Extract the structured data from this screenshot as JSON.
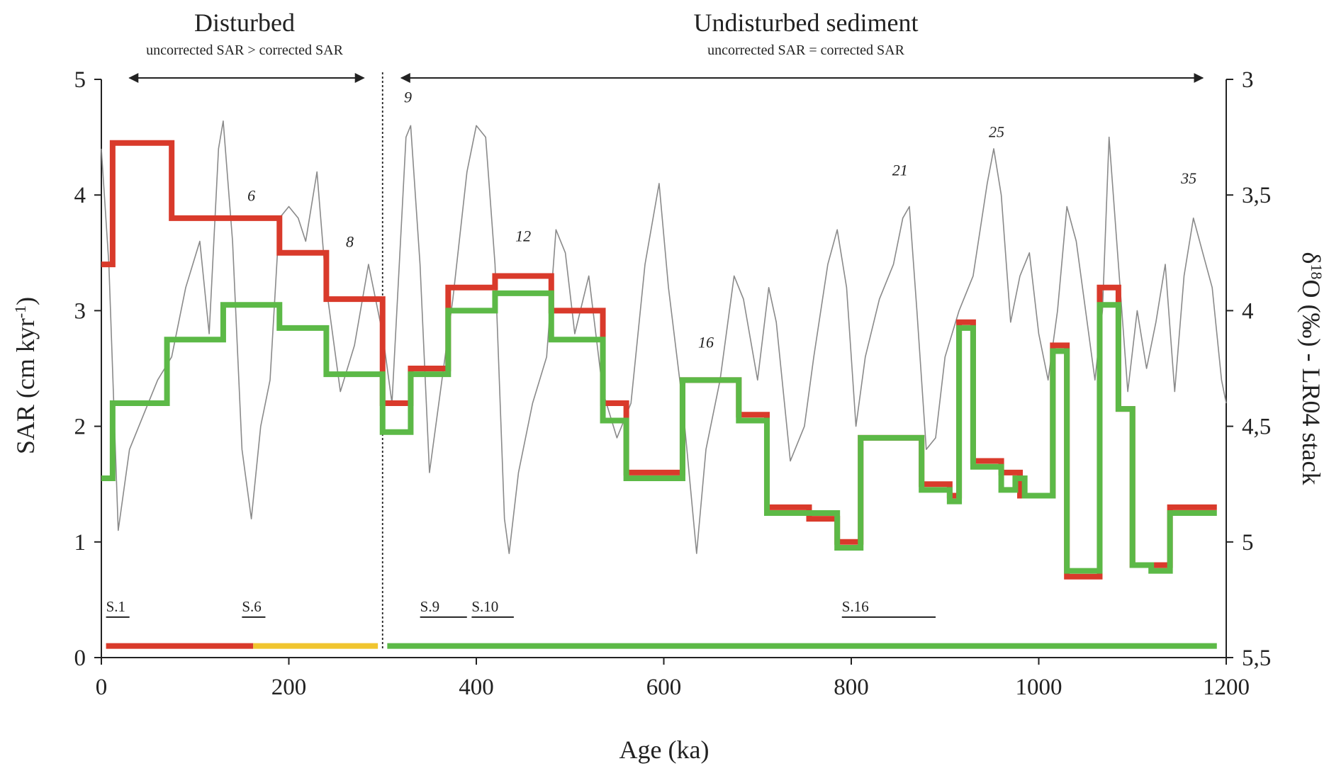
{
  "chart_data": {
    "type": "line",
    "header_left": "Disturbed",
    "subheader_left": "uncorrected SAR > corrected SAR",
    "header_right": "Undisturbed sediment",
    "subheader_right": "uncorrected SAR = corrected SAR",
    "xlabel": "Age (ka)",
    "ylabel": "SAR (cm kyr",
    "ylabel_sup": "-1",
    "ylabel_close": ")",
    "y2label_delta": "δ",
    "y2label_sup": "18",
    "y2label_rest": "O (‰) - LR04 stack",
    "xlim": [
      0,
      1200
    ],
    "ylim": [
      0,
      5
    ],
    "y2lim": [
      3,
      5.5
    ],
    "y2_inverted": true,
    "x_ticks": [
      "0",
      "200",
      "400",
      "600",
      "800",
      "1000",
      "1200"
    ],
    "y_ticks": [
      "0",
      "1",
      "2",
      "3",
      "4",
      "5"
    ],
    "y2_ticks": [
      "3",
      "3,5",
      "4",
      "4,5",
      "5",
      "5,5"
    ],
    "y2_tick_values": [
      3,
      3.5,
      4,
      4.5,
      5,
      5.5
    ],
    "disturbed_boundary_age": 300,
    "arrow_disturbed": [
      30,
      280
    ],
    "arrow_undisturbed": [
      320,
      1175
    ],
    "series": [
      {
        "name": "uncorrected SAR",
        "color": "#d93a2b",
        "steps": [
          [
            0,
            3.4
          ],
          [
            12,
            4.45
          ],
          [
            75,
            3.8
          ],
          [
            190,
            3.5
          ],
          [
            240,
            3.1
          ],
          [
            300,
            2.2
          ],
          [
            330,
            2.5
          ],
          [
            370,
            3.2
          ],
          [
            420,
            3.3
          ],
          [
            480,
            3.0
          ],
          [
            535,
            2.2
          ],
          [
            560,
            1.6
          ],
          [
            620,
            2.4
          ],
          [
            680,
            2.1
          ],
          [
            710,
            1.3
          ],
          [
            755,
            1.2
          ],
          [
            785,
            1.0
          ],
          [
            810,
            1.9
          ],
          [
            875,
            1.5
          ],
          [
            905,
            1.4
          ],
          [
            915,
            2.9
          ],
          [
            930,
            1.7
          ],
          [
            960,
            1.6
          ],
          [
            980,
            1.4
          ],
          [
            1015,
            2.7
          ],
          [
            1030,
            0.7
          ],
          [
            1065,
            3.2
          ],
          [
            1085,
            2.15
          ],
          [
            1100,
            0.8
          ],
          [
            1120,
            0.8
          ],
          [
            1140,
            1.3
          ],
          [
            1190,
            1.3
          ]
        ]
      },
      {
        "name": "corrected SAR",
        "color": "#5cb947",
        "steps": [
          [
            0,
            1.55
          ],
          [
            12,
            2.2
          ],
          [
            70,
            2.75
          ],
          [
            130,
            3.05
          ],
          [
            190,
            2.85
          ],
          [
            240,
            2.45
          ],
          [
            300,
            1.95
          ],
          [
            330,
            2.45
          ],
          [
            370,
            3.0
          ],
          [
            420,
            3.15
          ],
          [
            480,
            2.75
          ],
          [
            535,
            2.05
          ],
          [
            560,
            1.55
          ],
          [
            620,
            2.4
          ],
          [
            680,
            2.05
          ],
          [
            710,
            1.25
          ],
          [
            755,
            1.25
          ],
          [
            785,
            0.95
          ],
          [
            810,
            1.9
          ],
          [
            875,
            1.45
          ],
          [
            905,
            1.35
          ],
          [
            915,
            2.85
          ],
          [
            930,
            1.65
          ],
          [
            960,
            1.45
          ],
          [
            975,
            1.55
          ],
          [
            985,
            1.4
          ],
          [
            1015,
            2.65
          ],
          [
            1030,
            0.75
          ],
          [
            1065,
            3.05
          ],
          [
            1085,
            2.15
          ],
          [
            1100,
            0.8
          ],
          [
            1120,
            0.75
          ],
          [
            1140,
            1.25
          ],
          [
            1190,
            1.25
          ]
        ]
      },
      {
        "name": "LR04 stack",
        "color": "#8a8a8a",
        "axis": "right",
        "points": [
          [
            0,
            3.3
          ],
          [
            8,
            3.8
          ],
          [
            18,
            4.95
          ],
          [
            30,
            4.6
          ],
          [
            45,
            4.45
          ],
          [
            60,
            4.3
          ],
          [
            75,
            4.2
          ],
          [
            90,
            3.9
          ],
          [
            105,
            3.7
          ],
          [
            115,
            4.1
          ],
          [
            125,
            3.3
          ],
          [
            130,
            3.18
          ],
          [
            140,
            3.7
          ],
          [
            150,
            4.6
          ],
          [
            160,
            4.9
          ],
          [
            170,
            4.5
          ],
          [
            180,
            4.3
          ],
          [
            190,
            3.6
          ],
          [
            200,
            3.55
          ],
          [
            210,
            3.6
          ],
          [
            218,
            3.7
          ],
          [
            230,
            3.4
          ],
          [
            240,
            3.9
          ],
          [
            255,
            4.35
          ],
          [
            270,
            4.15
          ],
          [
            285,
            3.8
          ],
          [
            300,
            4.1
          ],
          [
            310,
            4.4
          ],
          [
            325,
            3.25
          ],
          [
            330,
            3.2
          ],
          [
            340,
            3.8
          ],
          [
            350,
            4.7
          ],
          [
            360,
            4.4
          ],
          [
            375,
            3.95
          ],
          [
            390,
            3.4
          ],
          [
            400,
            3.2
          ],
          [
            410,
            3.25
          ],
          [
            420,
            3.8
          ],
          [
            430,
            4.9
          ],
          [
            435,
            5.05
          ],
          [
            445,
            4.7
          ],
          [
            460,
            4.4
          ],
          [
            475,
            4.2
          ],
          [
            485,
            3.65
          ],
          [
            495,
            3.75
          ],
          [
            505,
            4.1
          ],
          [
            520,
            3.85
          ],
          [
            535,
            4.35
          ],
          [
            550,
            4.55
          ],
          [
            565,
            4.4
          ],
          [
            580,
            3.8
          ],
          [
            595,
            3.45
          ],
          [
            605,
            3.9
          ],
          [
            620,
            4.4
          ],
          [
            635,
            5.05
          ],
          [
            645,
            4.6
          ],
          [
            660,
            4.3
          ],
          [
            675,
            3.85
          ],
          [
            685,
            3.95
          ],
          [
            700,
            4.3
          ],
          [
            712,
            3.9
          ],
          [
            720,
            4.05
          ],
          [
            735,
            4.65
          ],
          [
            750,
            4.5
          ],
          [
            760,
            4.2
          ],
          [
            775,
            3.8
          ],
          [
            785,
            3.65
          ],
          [
            795,
            3.9
          ],
          [
            805,
            4.5
          ],
          [
            815,
            4.2
          ],
          [
            830,
            3.95
          ],
          [
            845,
            3.8
          ],
          [
            855,
            3.6
          ],
          [
            862,
            3.55
          ],
          [
            870,
            4.0
          ],
          [
            880,
            4.6
          ],
          [
            890,
            4.55
          ],
          [
            900,
            4.2
          ],
          [
            915,
            4.0
          ],
          [
            930,
            3.85
          ],
          [
            945,
            3.45
          ],
          [
            952,
            3.3
          ],
          [
            960,
            3.5
          ],
          [
            970,
            4.05
          ],
          [
            980,
            3.85
          ],
          [
            990,
            3.75
          ],
          [
            1000,
            4.1
          ],
          [
            1010,
            4.3
          ],
          [
            1020,
            4.0
          ],
          [
            1030,
            3.55
          ],
          [
            1040,
            3.7
          ],
          [
            1050,
            4.0
          ],
          [
            1060,
            4.3
          ],
          [
            1068,
            4.0
          ],
          [
            1075,
            3.25
          ],
          [
            1085,
            3.8
          ],
          [
            1095,
            4.35
          ],
          [
            1105,
            4.0
          ],
          [
            1115,
            4.25
          ],
          [
            1125,
            4.05
          ],
          [
            1135,
            3.8
          ],
          [
            1145,
            4.35
          ],
          [
            1155,
            3.85
          ],
          [
            1165,
            3.6
          ],
          [
            1175,
            3.75
          ],
          [
            1185,
            3.9
          ],
          [
            1195,
            4.3
          ],
          [
            1200,
            4.4
          ]
        ]
      }
    ],
    "annotations": [
      {
        "text": "6",
        "x": 160,
        "y": 3.95
      },
      {
        "text": "8",
        "x": 265,
        "y": 3.55
      },
      {
        "text": "9",
        "x": 327,
        "y": 4.8
      },
      {
        "text": "12",
        "x": 450,
        "y": 3.6
      },
      {
        "text": "16",
        "x": 645,
        "y": 2.68
      },
      {
        "text": "21",
        "x": 852,
        "y": 4.17
      },
      {
        "text": "25",
        "x": 955,
        "y": 4.5
      },
      {
        "text": "35",
        "x": 1160,
        "y": 4.1
      }
    ],
    "stages": [
      {
        "label": "S.1",
        "start": 5,
        "end": 30
      },
      {
        "label": "S.6",
        "start": 150,
        "end": 175
      },
      {
        "label": "S.9",
        "start": 340,
        "end": 390
      },
      {
        "label": "S.10",
        "start": 395,
        "end": 440
      },
      {
        "label": "S.16",
        "start": 790,
        "end": 890
      }
    ],
    "bottom_bar": [
      {
        "start": 5,
        "end": 162,
        "color": "#d93a2b",
        "level": 0.1
      },
      {
        "start": 162,
        "end": 295,
        "color": "#f0c52f",
        "level": 0.1
      },
      {
        "start": 305,
        "end": 1190,
        "color": "#5cb947",
        "level": 0.1
      }
    ]
  }
}
